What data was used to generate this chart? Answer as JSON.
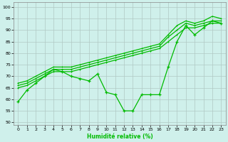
{
  "xlabel": "Humidité relative (%)",
  "bg_color": "#cff0eb",
  "grid_color": "#b0c8c4",
  "line_color": "#00bb00",
  "xlim": [
    -0.5,
    23.5
  ],
  "ylim": [
    49,
    102
  ],
  "yticks": [
    50,
    55,
    60,
    65,
    70,
    75,
    80,
    85,
    90,
    95,
    100
  ],
  "xticks": [
    0,
    1,
    2,
    3,
    4,
    5,
    6,
    7,
    8,
    9,
    10,
    11,
    12,
    13,
    14,
    15,
    16,
    17,
    18,
    19,
    20,
    21,
    22,
    23
  ],
  "line1_marked": [
    59,
    64,
    67,
    70,
    73,
    72,
    70,
    69,
    68,
    71,
    63,
    62,
    55,
    55,
    62,
    62,
    62,
    74,
    85,
    92,
    88,
    91,
    94,
    93
  ],
  "line2": [
    65,
    66,
    68,
    70,
    72,
    72,
    72,
    73,
    74,
    75,
    76,
    77,
    78,
    79,
    80,
    81,
    82,
    85,
    88,
    91,
    91,
    92,
    93,
    93
  ],
  "line3": [
    66,
    67,
    69,
    71,
    73,
    73,
    73,
    74,
    75,
    76,
    77,
    78,
    79,
    80,
    81,
    82,
    83,
    87,
    90,
    93,
    92,
    93,
    94,
    94
  ],
  "line4": [
    67,
    68,
    70,
    72,
    74,
    74,
    74,
    75,
    76,
    77,
    78,
    79,
    80,
    81,
    82,
    83,
    84,
    88,
    92,
    94,
    93,
    94,
    96,
    95
  ]
}
